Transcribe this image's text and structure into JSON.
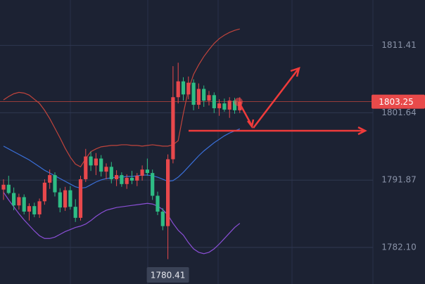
{
  "chart_data": {
    "type": "candlestick",
    "ylim": [
      1776.8,
      1818.0
    ],
    "yticks": [
      1811.41,
      1801.64,
      1791.87,
      {
        "value": 1782.1,
        "label": "1782.10"
      }
    ],
    "grid": true,
    "up_color": "#e8484c",
    "down_color": "#2ebd85",
    "open": [
      1790.5,
      1791.2,
      1790.0,
      1788.2,
      1789.4,
      1787.3,
      1788.1,
      1786.9,
      1788.8,
      1791.5,
      1792.6,
      1790.1,
      1787.9,
      1790.4,
      1788.0,
      1786.4,
      1792.0,
      1795.3,
      1794.0,
      1795.0,
      1793.1,
      1793.8,
      1792.0,
      1792.6,
      1791.3,
      1792.2,
      1791.8,
      1792.5,
      1793.4,
      1792.9,
      1789.6,
      1787.3,
      1785.2,
      1794.9,
      1803.9,
      1806.2,
      1804.3,
      1806.0,
      1802.8,
      1805.1,
      1803.4,
      1804.2,
      1802.3,
      1803.0,
      1802.1,
      1803.4,
      1802.0
    ],
    "high": [
      1792.0,
      1792.5,
      1790.8,
      1789.9,
      1789.8,
      1788.5,
      1788.6,
      1789.2,
      1792.0,
      1793.4,
      1793.0,
      1790.7,
      1790.9,
      1791.0,
      1789.1,
      1792.5,
      1796.4,
      1796.0,
      1795.8,
      1795.5,
      1794.3,
      1794.5,
      1793.3,
      1793.0,
      1792.7,
      1793.2,
      1792.9,
      1794.0,
      1795.0,
      1793.4,
      1790.2,
      1787.8,
      1795.6,
      1808.4,
      1808.9,
      1806.8,
      1806.9,
      1806.5,
      1805.9,
      1805.6,
      1804.8,
      1804.6,
      1803.6,
      1803.7,
      1803.9,
      1803.8,
      1803.9
    ],
    "low": [
      1789.0,
      1789.8,
      1787.5,
      1787.6,
      1786.9,
      1786.0,
      1786.5,
      1786.4,
      1788.3,
      1790.6,
      1789.5,
      1787.2,
      1787.4,
      1787.6,
      1785.8,
      1786.0,
      1791.6,
      1793.2,
      1792.6,
      1792.4,
      1792.0,
      1791.4,
      1791.0,
      1790.9,
      1790.6,
      1791.3,
      1791.0,
      1791.8,
      1792.5,
      1789.0,
      1786.8,
      1784.6,
      1780.41,
      1794.3,
      1803.0,
      1803.4,
      1803.6,
      1802.0,
      1802.2,
      1802.5,
      1802.7,
      1801.6,
      1801.2,
      1801.8,
      1800.9,
      1801.5,
      1801.6
    ],
    "close": [
      1791.2,
      1790.0,
      1788.2,
      1789.4,
      1787.3,
      1788.1,
      1786.9,
      1788.8,
      1791.5,
      1792.6,
      1790.1,
      1787.9,
      1790.4,
      1788.0,
      1786.4,
      1792.0,
      1795.3,
      1794.0,
      1795.0,
      1793.1,
      1793.8,
      1792.0,
      1792.6,
      1791.3,
      1792.2,
      1791.8,
      1792.5,
      1793.4,
      1792.9,
      1789.6,
      1787.3,
      1785.2,
      1794.9,
      1803.9,
      1806.2,
      1804.3,
      1806.0,
      1802.8,
      1805.1,
      1803.4,
      1804.2,
      1802.3,
      1803.0,
      1802.1,
      1803.4,
      1802.0,
      1803.25
    ],
    "bands": [
      {
        "color": "#c0443c",
        "values": [
          1803.5,
          1804.0,
          1804.4,
          1804.6,
          1804.5,
          1804.2,
          1803.6,
          1803.0,
          1802.0,
          1800.8,
          1799.4,
          1798.0,
          1796.5,
          1795.2,
          1794.2,
          1793.8,
          1795.0,
          1796.0,
          1796.4,
          1796.7,
          1796.8,
          1796.9,
          1796.9,
          1797.0,
          1797.0,
          1796.9,
          1796.9,
          1796.8,
          1796.9,
          1797.0,
          1796.9,
          1796.8,
          1796.8,
          1797.0,
          1797.6,
          1801.5,
          1805.0,
          1807.2,
          1808.6,
          1809.8,
          1810.8,
          1811.7,
          1812.4,
          1812.9,
          1813.3,
          1813.6,
          1813.8
        ]
      },
      {
        "color": "#3a6fd8",
        "values": [
          1796.8,
          1796.4,
          1796.0,
          1795.6,
          1795.2,
          1794.8,
          1794.3,
          1793.8,
          1793.3,
          1792.9,
          1792.5,
          1792.1,
          1791.7,
          1791.3,
          1790.9,
          1790.7,
          1790.8,
          1791.2,
          1791.6,
          1791.9,
          1792.1,
          1792.2,
          1792.3,
          1792.3,
          1792.4,
          1792.4,
          1792.5,
          1792.6,
          1792.6,
          1792.5,
          1792.3,
          1792.0,
          1791.7,
          1791.8,
          1792.3,
          1793.0,
          1793.8,
          1794.6,
          1795.4,
          1796.1,
          1796.7,
          1797.3,
          1797.8,
          1798.3,
          1798.7,
          1799.0,
          1799.3
        ]
      },
      {
        "color": "#8a4fd6",
        "values": [
          1790.1,
          1789.0,
          1788.0,
          1787.0,
          1786.1,
          1785.3,
          1784.5,
          1783.8,
          1783.4,
          1783.4,
          1783.6,
          1784.0,
          1784.4,
          1784.7,
          1785.0,
          1785.2,
          1785.5,
          1786.0,
          1786.6,
          1787.1,
          1787.5,
          1787.7,
          1787.9,
          1788.0,
          1788.1,
          1788.2,
          1788.3,
          1788.4,
          1788.5,
          1788.4,
          1788.1,
          1787.6,
          1786.8,
          1785.6,
          1784.6,
          1783.9,
          1782.8,
          1781.9,
          1781.4,
          1781.2,
          1781.4,
          1781.9,
          1782.6,
          1783.4,
          1784.2,
          1785.0,
          1785.6
        ]
      }
    ],
    "last_price": 1803.25,
    "low_marker": 1780.41
  }
}
